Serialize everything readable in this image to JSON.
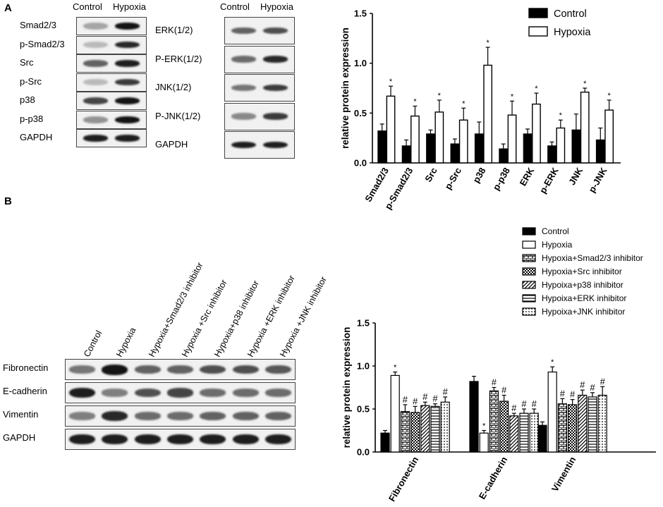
{
  "panelA": {
    "letter": "A",
    "blot_left": {
      "headers": [
        "Control",
        "Hypoxia"
      ],
      "rows": [
        {
          "label": "Smad2/3",
          "control": 0.25,
          "hypoxia": 1.0
        },
        {
          "label": "p-Smad2/3",
          "control": 0.15,
          "hypoxia": 0.9
        },
        {
          "label": "Src",
          "control": 0.6,
          "hypoxia": 0.95
        },
        {
          "label": "p-Src",
          "control": 0.15,
          "hypoxia": 0.8
        },
        {
          "label": "p38",
          "control": 0.75,
          "hypoxia": 1.0
        },
        {
          "label": "p-p38",
          "control": 0.35,
          "hypoxia": 1.0
        },
        {
          "label": "GAPDH",
          "control": 0.95,
          "hypoxia": 0.95
        }
      ]
    },
    "blot_right": {
      "headers": [
        "Control",
        "Hypoxia"
      ],
      "rows": [
        {
          "label": "ERK(1/2)",
          "control": 0.6,
          "hypoxia": 0.7
        },
        {
          "label": "P-ERK(1/2)",
          "control": 0.55,
          "hypoxia": 0.9
        },
        {
          "label": "JNK(1/2)",
          "control": 0.5,
          "hypoxia": 0.8
        },
        {
          "label": "P-JNK(1/2)",
          "control": 0.4,
          "hypoxia": 0.8
        },
        {
          "label": "GAPDH",
          "control": 0.95,
          "hypoxia": 0.95
        }
      ]
    }
  },
  "panelB": {
    "letter": "B",
    "blot": {
      "headers": [
        "Control",
        "Hypoxia",
        "Hypoxia+Smad2/3 inhibitor",
        "Hypoxia +Src inhibitor",
        "Hypoxia+p38 inhibitor",
        "Hypoxia +ERK inhibitor",
        "Hypoxia +JNK inhibitor"
      ],
      "rows": [
        {
          "label": "Fibronectin",
          "levels": [
            0.5,
            1.0,
            0.6,
            0.6,
            0.7,
            0.7,
            0.65
          ]
        },
        {
          "label": "E-cadherin",
          "levels": [
            0.95,
            0.45,
            0.7,
            0.75,
            0.55,
            0.55,
            0.55
          ]
        },
        {
          "label": "Vimentin",
          "levels": [
            0.45,
            0.9,
            0.55,
            0.55,
            0.6,
            0.6,
            0.6
          ]
        },
        {
          "label": "GAPDH",
          "levels": [
            0.95,
            0.95,
            0.95,
            0.95,
            0.95,
            0.95,
            0.95
          ]
        }
      ]
    }
  },
  "chart_data": [
    {
      "type": "bar",
      "ylabel": "relative protein expression",
      "ylim": [
        0,
        1.5
      ],
      "yticks": [
        "0.0",
        "0.5",
        "1.0",
        "1.5"
      ],
      "categories": [
        "Smad2/3",
        "p-Smad2/3",
        "Src",
        "p-Src",
        "p38",
        "p-p38",
        "ERK",
        "p-ERK",
        "JNK",
        "p-JNK"
      ],
      "series": [
        {
          "name": "Control",
          "values": [
            0.32,
            0.17,
            0.29,
            0.19,
            0.29,
            0.14,
            0.29,
            0.17,
            0.33,
            0.23
          ],
          "errors": [
            0.07,
            0.06,
            0.04,
            0.05,
            0.12,
            0.05,
            0.05,
            0.04,
            0.16,
            0.12
          ]
        },
        {
          "name": "Hypoxia",
          "values": [
            0.67,
            0.47,
            0.51,
            0.43,
            0.98,
            0.48,
            0.59,
            0.35,
            0.71,
            0.53
          ],
          "errors": [
            0.1,
            0.1,
            0.12,
            0.12,
            0.18,
            0.14,
            0.11,
            0.08,
            0.04,
            0.1
          ]
        }
      ],
      "annotations": [
        {
          "series": "Hypoxia",
          "category": "Smad2/3",
          "text": "*"
        },
        {
          "series": "Hypoxia",
          "category": "p-Smad2/3",
          "text": "*"
        },
        {
          "series": "Hypoxia",
          "category": "Src",
          "text": "*"
        },
        {
          "series": "Hypoxia",
          "category": "p-Src",
          "text": "*"
        },
        {
          "series": "Hypoxia",
          "category": "p38",
          "text": "*"
        },
        {
          "series": "Hypoxia",
          "category": "p-p38",
          "text": "*"
        },
        {
          "series": "Hypoxia",
          "category": "ERK",
          "text": "*"
        },
        {
          "series": "Hypoxia",
          "category": "p-ERK",
          "text": "*"
        },
        {
          "series": "Hypoxia",
          "category": "JNK",
          "text": "*"
        },
        {
          "series": "Hypoxia",
          "category": "p-JNK",
          "text": "*"
        }
      ],
      "legend": "top-right",
      "grid": false
    },
    {
      "type": "bar",
      "ylabel": "relative protein expression",
      "ylim": [
        0,
        1.5
      ],
      "yticks": [
        "0.0",
        "0.5",
        "1.0",
        "1.5"
      ],
      "categories": [
        "Fibronectin",
        "E-cadherin",
        "Vimentin"
      ],
      "series": [
        {
          "name": "Control",
          "pattern": "solid",
          "values": [
            0.22,
            0.82,
            0.31
          ],
          "errors": [
            0.03,
            0.06,
            0.04
          ],
          "mark": ""
        },
        {
          "name": "Hypoxia",
          "pattern": "empty",
          "values": [
            0.89,
            0.22,
            0.93
          ],
          "errors": [
            0.04,
            0.03,
            0.06
          ],
          "mark": "*"
        },
        {
          "name": "Hypoxia+Smad2/3 inhibitor",
          "pattern": "brick",
          "values": [
            0.47,
            0.71,
            0.56
          ],
          "errors": [
            0.08,
            0.04,
            0.06
          ],
          "mark": "#"
        },
        {
          "name": "Hypoxia+Src inhibitor",
          "pattern": "checker",
          "values": [
            0.46,
            0.59,
            0.55
          ],
          "errors": [
            0.07,
            0.07,
            0.06
          ],
          "mark": "#"
        },
        {
          "name": "Hypoixa+p38 inhibitor",
          "pattern": "diagonal",
          "values": [
            0.54,
            0.42,
            0.66
          ],
          "errors": [
            0.04,
            0.03,
            0.06
          ],
          "mark": "#"
        },
        {
          "name": "Hypoixa+ERK inhibitor",
          "pattern": "hlines",
          "values": [
            0.53,
            0.45,
            0.64
          ],
          "errors": [
            0.03,
            0.05,
            0.05
          ],
          "mark": "#"
        },
        {
          "name": "Hypoixa+JNK inhibitor",
          "pattern": "dots",
          "values": [
            0.58,
            0.45,
            0.66
          ],
          "errors": [
            0.06,
            0.05,
            0.1
          ],
          "mark": "#"
        }
      ],
      "legend": "top-right",
      "grid": false
    }
  ]
}
